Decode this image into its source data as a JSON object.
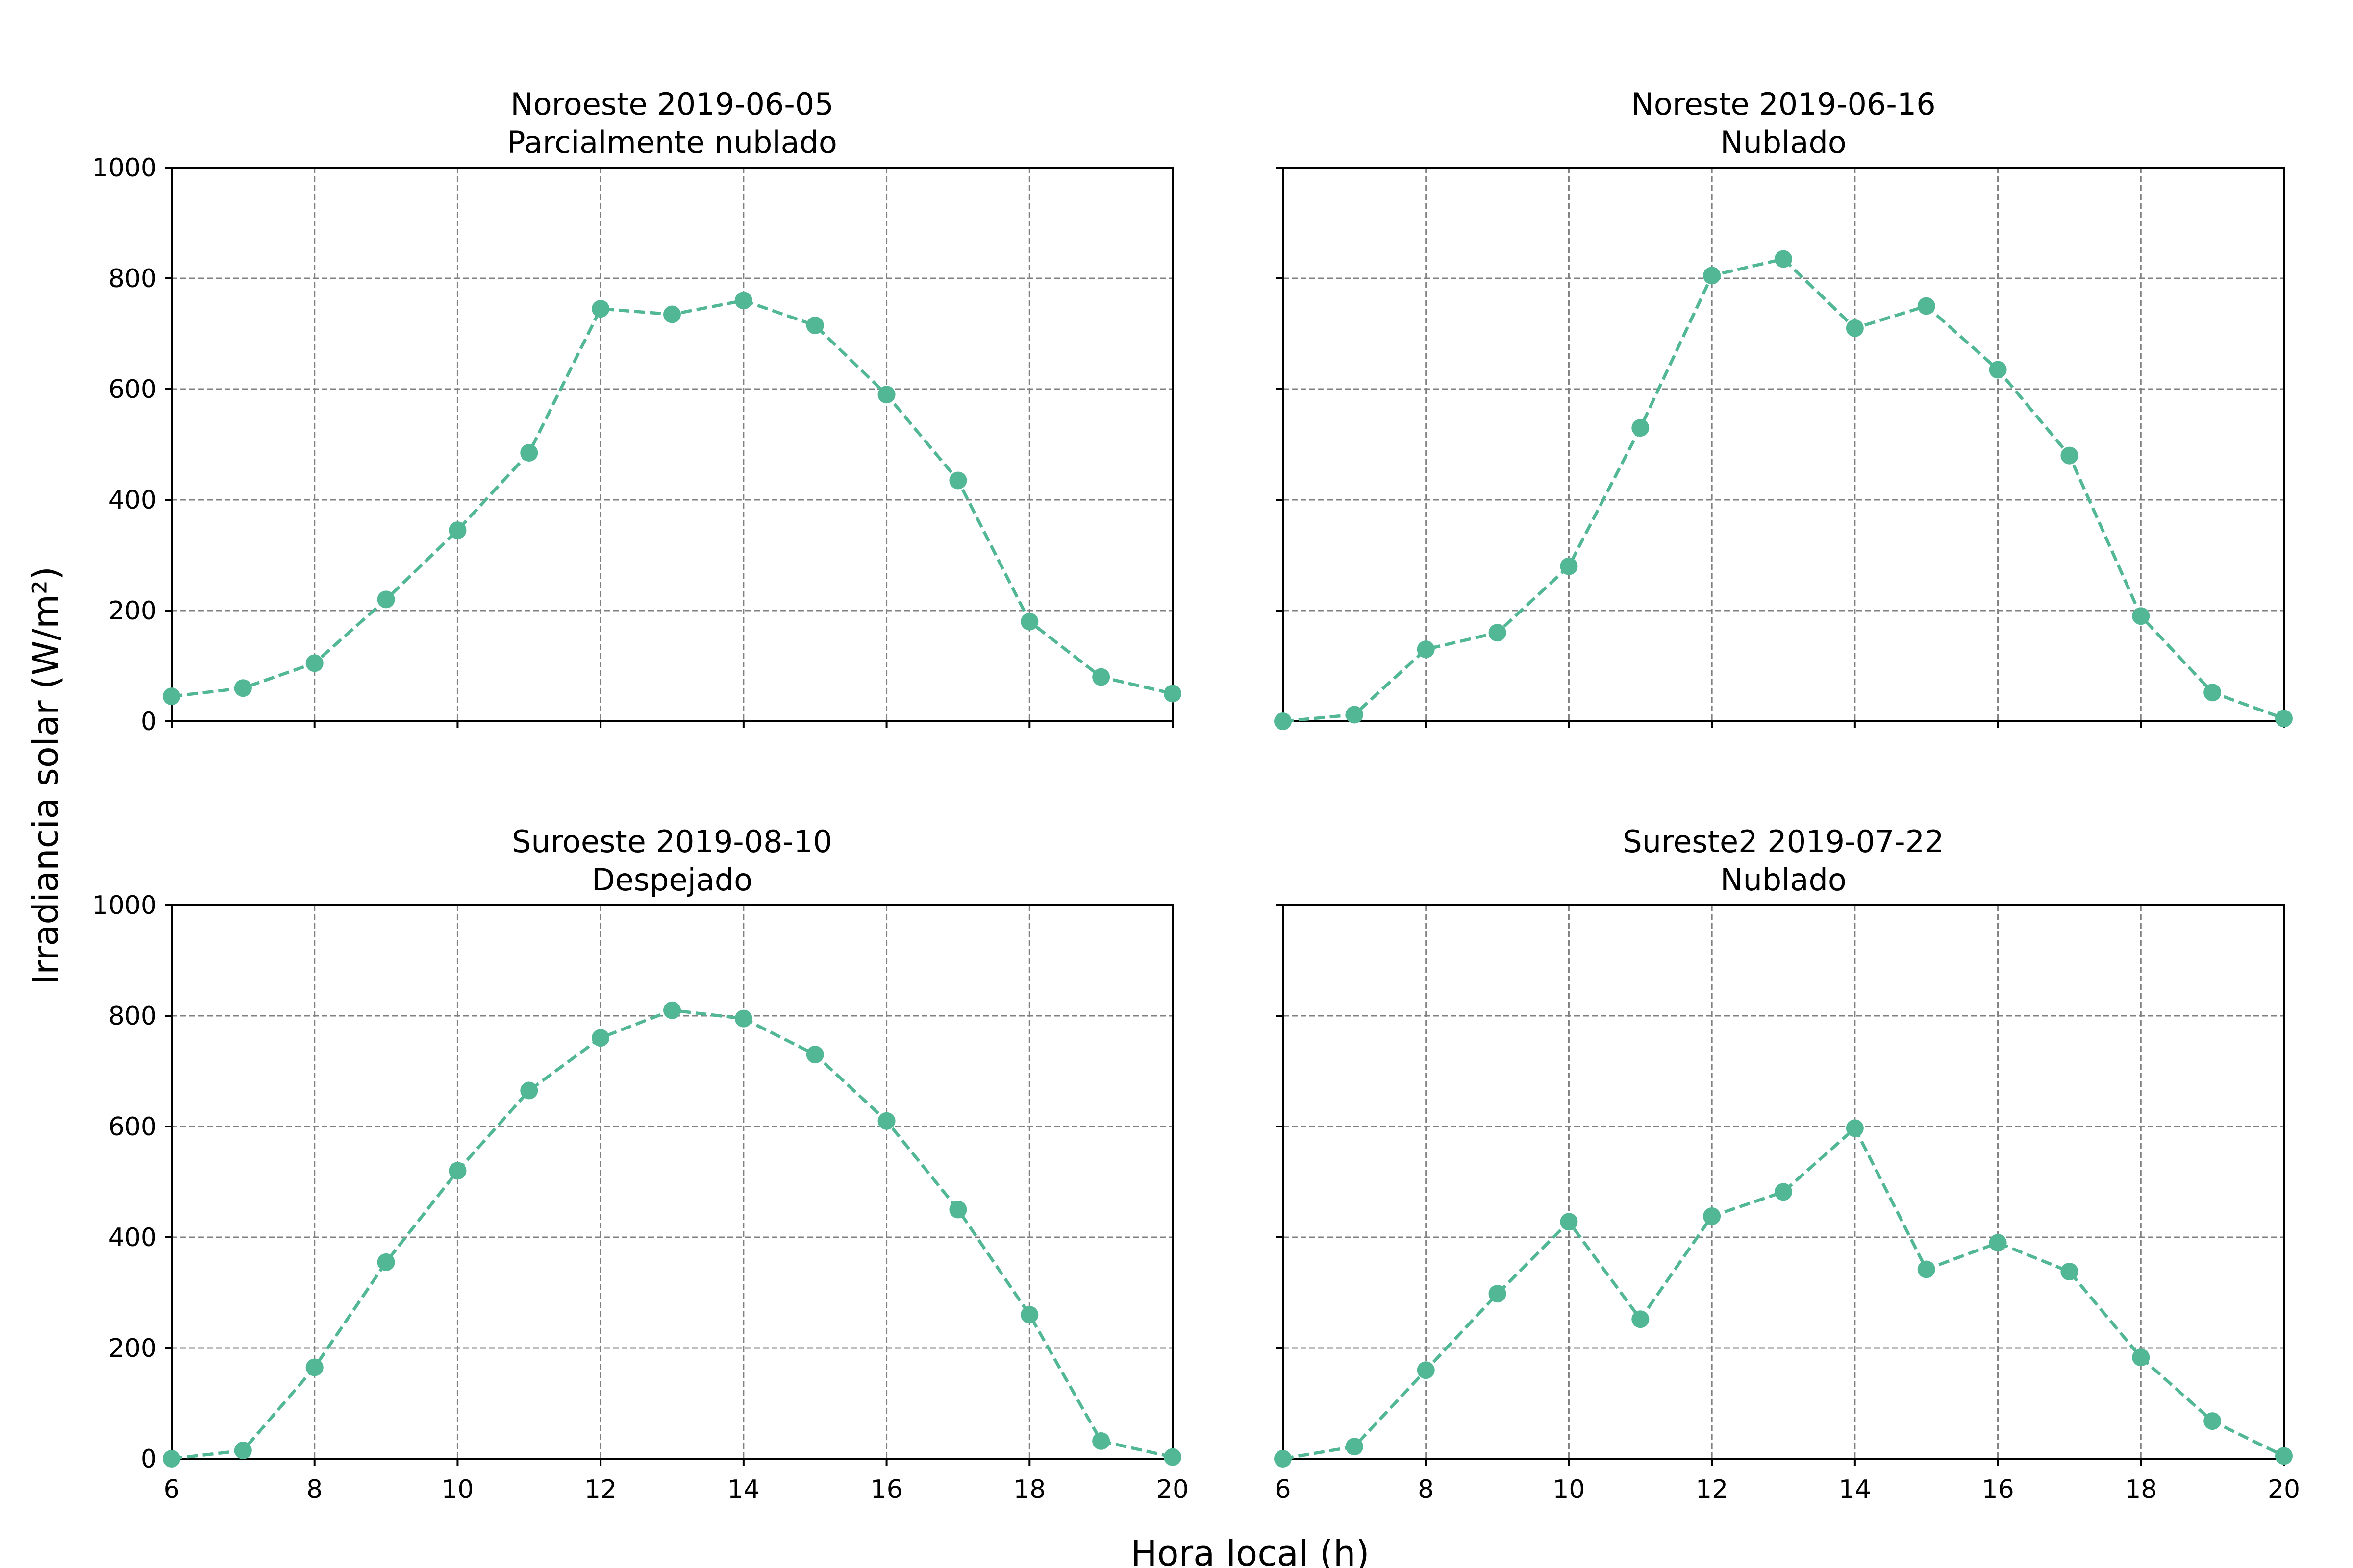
{
  "figure": {
    "xlabel": "Hora local (h)",
    "ylabel": "Irradiancia solar (W/m²)",
    "series_color": "#52b795",
    "grid_color": "#808080"
  },
  "chart_data": [
    {
      "type": "line",
      "title": "Noroeste 2019-06-05",
      "subtitle": "Parcialmente nublado",
      "x": [
        6,
        7,
        8,
        9,
        10,
        11,
        12,
        13,
        14,
        15,
        16,
        17,
        18,
        19,
        20
      ],
      "series": [
        {
          "values": [
            45,
            60,
            105,
            220,
            345,
            485,
            745,
            735,
            760,
            715,
            590,
            435,
            180,
            80,
            50
          ]
        }
      ],
      "xlim": [
        6,
        20
      ],
      "ylim": [
        0,
        1000
      ],
      "xticks": [
        6,
        8,
        10,
        12,
        14,
        16,
        18,
        20
      ],
      "yticks": [
        0,
        200,
        400,
        600,
        800,
        1000
      ],
      "show_x_tick_labels": false,
      "show_y_tick_labels": true,
      "grid": true,
      "line_style": "dashed",
      "marker": "circle"
    },
    {
      "type": "line",
      "title": "Noreste 2019-06-16",
      "subtitle": "Nublado",
      "x": [
        6,
        7,
        8,
        9,
        10,
        11,
        12,
        13,
        14,
        15,
        16,
        17,
        18,
        19,
        20
      ],
      "series": [
        {
          "values": [
            0,
            12,
            130,
            160,
            280,
            530,
            805,
            835,
            710,
            750,
            635,
            480,
            190,
            52,
            5
          ]
        }
      ],
      "xlim": [
        6,
        20
      ],
      "ylim": [
        0,
        1000
      ],
      "xticks": [
        6,
        8,
        10,
        12,
        14,
        16,
        18,
        20
      ],
      "yticks": [
        0,
        200,
        400,
        600,
        800,
        1000
      ],
      "show_x_tick_labels": false,
      "show_y_tick_labels": false,
      "grid": true,
      "line_style": "dashed",
      "marker": "circle"
    },
    {
      "type": "line",
      "title": "Suroeste 2019-08-10",
      "subtitle": "Despejado",
      "x": [
        6,
        7,
        8,
        9,
        10,
        11,
        12,
        13,
        14,
        15,
        16,
        17,
        18,
        19,
        20
      ],
      "series": [
        {
          "values": [
            0,
            15,
            165,
            355,
            520,
            665,
            760,
            810,
            795,
            730,
            610,
            450,
            260,
            32,
            3
          ]
        }
      ],
      "xlim": [
        6,
        20
      ],
      "ylim": [
        0,
        1000
      ],
      "xticks": [
        6,
        8,
        10,
        12,
        14,
        16,
        18,
        20
      ],
      "yticks": [
        0,
        200,
        400,
        600,
        800,
        1000
      ],
      "show_x_tick_labels": true,
      "show_y_tick_labels": true,
      "grid": true,
      "line_style": "dashed",
      "marker": "circle"
    },
    {
      "type": "line",
      "title": "Sureste2 2019-07-22",
      "subtitle": "Nublado",
      "x": [
        6,
        7,
        8,
        9,
        10,
        11,
        12,
        13,
        14,
        15,
        16,
        17,
        18,
        19,
        20
      ],
      "series": [
        {
          "values": [
            0,
            22,
            160,
            298,
            428,
            252,
            438,
            482,
            597,
            342,
            390,
            338,
            183,
            68,
            5
          ]
        }
      ],
      "xlim": [
        6,
        20
      ],
      "ylim": [
        0,
        1000
      ],
      "xticks": [
        6,
        8,
        10,
        12,
        14,
        16,
        18,
        20
      ],
      "yticks": [
        0,
        200,
        400,
        600,
        800,
        1000
      ],
      "show_x_tick_labels": true,
      "show_y_tick_labels": false,
      "grid": true,
      "line_style": "dashed",
      "marker": "circle"
    }
  ]
}
